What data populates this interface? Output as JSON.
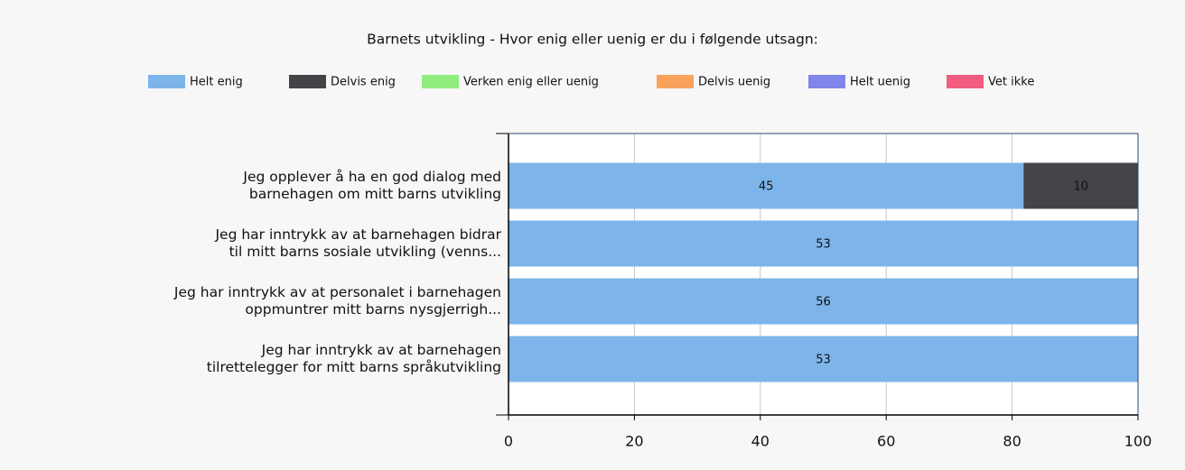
{
  "chart_data": {
    "type": "bar",
    "orientation": "horizontal",
    "stacked": "percent",
    "title": "Barnets utvikling - Hvor enig eller uenig er du i følgende utsagn:",
    "categories": [
      "Jeg opplever å ha en god dialog med\nbarnehagen om mitt barns utvikling",
      "Jeg har inntrykk av at barnehagen bidrar\ntil mitt barns sosiale utvikling (venns...",
      "Jeg har inntrykk av at personalet i barnehagen\noppmuntrer mitt barns nysgjerrigh...",
      "Jeg har inntrykk av at barnehagen\ntilrettelegger for mitt barns språkutvikling"
    ],
    "series": [
      {
        "name": "Helt enig",
        "color": "#7db4ea",
        "values": [
          45,
          53,
          56,
          53
        ]
      },
      {
        "name": "Delvis enig",
        "color": "#434348",
        "values": [
          10,
          0,
          0,
          0
        ]
      },
      {
        "name": "Verken enig eller uenig",
        "color": "#90ed7d",
        "values": [
          0,
          0,
          0,
          0
        ]
      },
      {
        "name": "Delvis uenig",
        "color": "#f7a35c",
        "values": [
          0,
          0,
          0,
          0
        ]
      },
      {
        "name": "Helt uenig",
        "color": "#8085e9",
        "values": [
          0,
          0,
          0,
          0
        ]
      },
      {
        "name": "Vet ikke",
        "color": "#f15c80",
        "values": [
          0,
          0,
          0,
          0
        ]
      }
    ],
    "xlim": [
      0,
      100
    ],
    "xticks": [
      0,
      20,
      40,
      60,
      80,
      100
    ],
    "grid": true
  }
}
